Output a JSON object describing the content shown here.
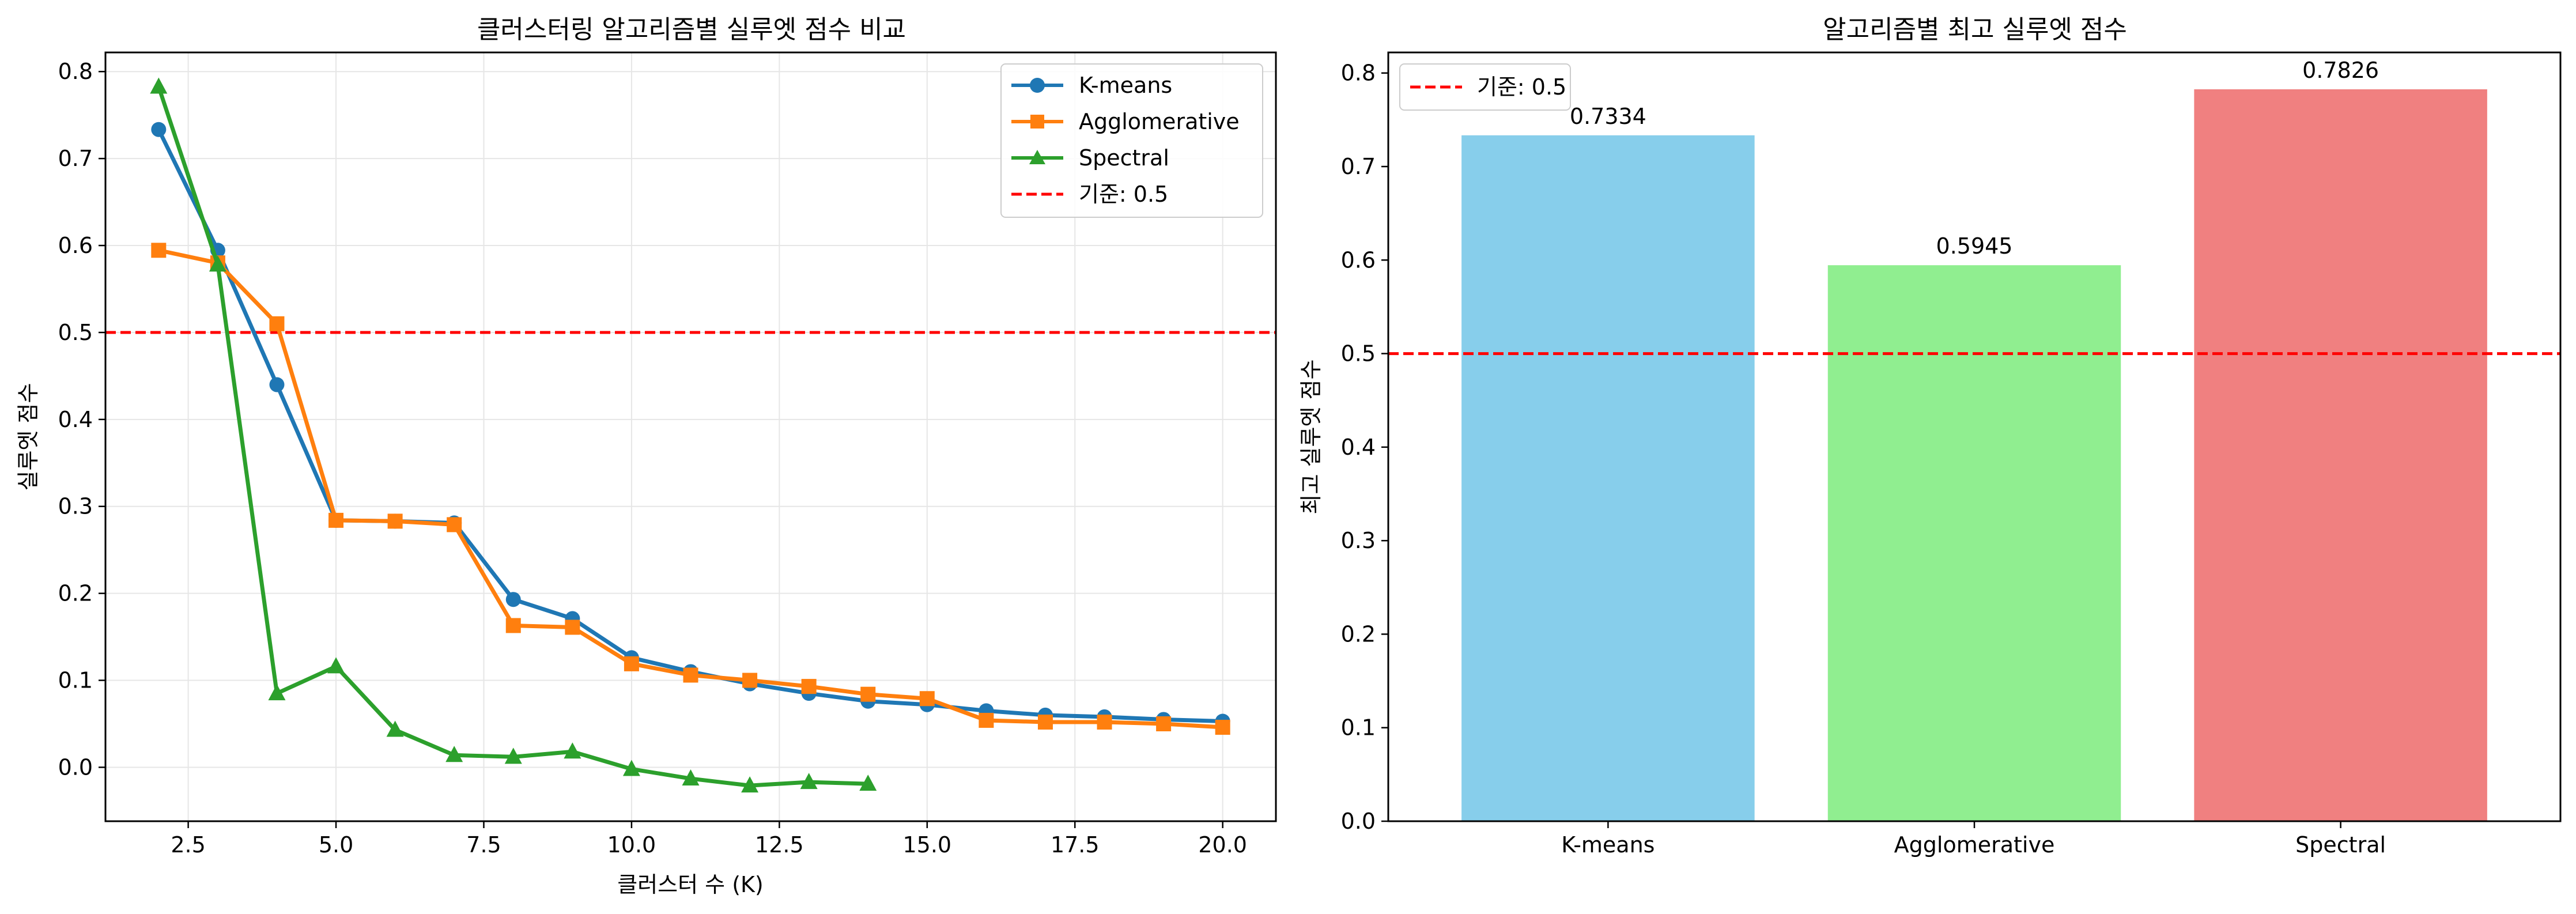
{
  "chart_data": [
    {
      "type": "line",
      "title": "클러스터링 알고리즘별 실루엣 점수 비교",
      "xlabel": "클러스터 수 (K)",
      "ylabel": "실루엣 점수",
      "xlim": [
        1.1,
        20.9
      ],
      "ylim": [
        -0.062,
        0.822
      ],
      "xticks": [
        2.5,
        5.0,
        7.5,
        10.0,
        12.5,
        15.0,
        17.5,
        20.0
      ],
      "yticks": [
        0.0,
        0.1,
        0.2,
        0.3,
        0.4,
        0.5,
        0.6,
        0.7,
        0.8
      ],
      "grid": true,
      "legend_position": "top-right",
      "series": [
        {
          "name": "K-means",
          "color": "#1f77b4",
          "marker": "circle",
          "x": [
            2,
            3,
            4,
            5,
            6,
            7,
            8,
            9,
            10,
            11,
            12,
            13,
            14,
            15,
            16,
            17,
            18,
            19,
            20
          ],
          "values": [
            0.7334,
            0.5945,
            0.44,
            0.284,
            0.283,
            0.281,
            0.193,
            0.171,
            0.126,
            0.11,
            0.096,
            0.085,
            0.076,
            0.072,
            0.065,
            0.06,
            0.058,
            0.055,
            0.053
          ]
        },
        {
          "name": "Agglomerative",
          "color": "#ff7f0e",
          "marker": "square",
          "x": [
            2,
            3,
            4,
            5,
            6,
            7,
            8,
            9,
            10,
            11,
            12,
            13,
            14,
            15,
            16,
            17,
            18,
            19,
            20
          ],
          "values": [
            0.5945,
            0.58,
            0.51,
            0.284,
            0.283,
            0.279,
            0.163,
            0.161,
            0.119,
            0.106,
            0.1,
            0.093,
            0.084,
            0.079,
            0.054,
            0.052,
            0.052,
            0.05,
            0.046
          ]
        },
        {
          "name": "Spectral",
          "color": "#2ca02c",
          "marker": "triangle",
          "x": [
            2,
            3,
            4,
            5,
            6,
            7,
            8,
            9,
            10,
            11,
            12,
            13,
            14
          ],
          "values": [
            0.7826,
            0.578,
            0.085,
            0.116,
            0.043,
            0.014,
            0.012,
            0.018,
            -0.002,
            -0.013,
            -0.021,
            -0.017,
            -0.019
          ]
        }
      ],
      "threshold": {
        "name": "기준: 0.5",
        "value": 0.5,
        "color": "#ff0000"
      }
    },
    {
      "type": "bar",
      "title": "알고리즘별 최고 실루엣 점수",
      "xlabel": "",
      "ylabel": "최고 실루엣 점수",
      "categories": [
        "K-means",
        "Agglomerative",
        "Spectral"
      ],
      "values": [
        0.7334,
        0.5945,
        0.7826
      ],
      "value_labels": [
        "0.7334",
        "0.5945",
        "0.7826"
      ],
      "colors": [
        "#87ceeb",
        "#90ee90",
        "#f08080"
      ],
      "ylim": [
        0,
        0.822
      ],
      "yticks": [
        0.0,
        0.1,
        0.2,
        0.3,
        0.4,
        0.5,
        0.6,
        0.7,
        0.8
      ],
      "grid": false,
      "legend_position": "top-left",
      "threshold": {
        "name": "기준: 0.5",
        "value": 0.5,
        "color": "#ff0000"
      }
    }
  ]
}
